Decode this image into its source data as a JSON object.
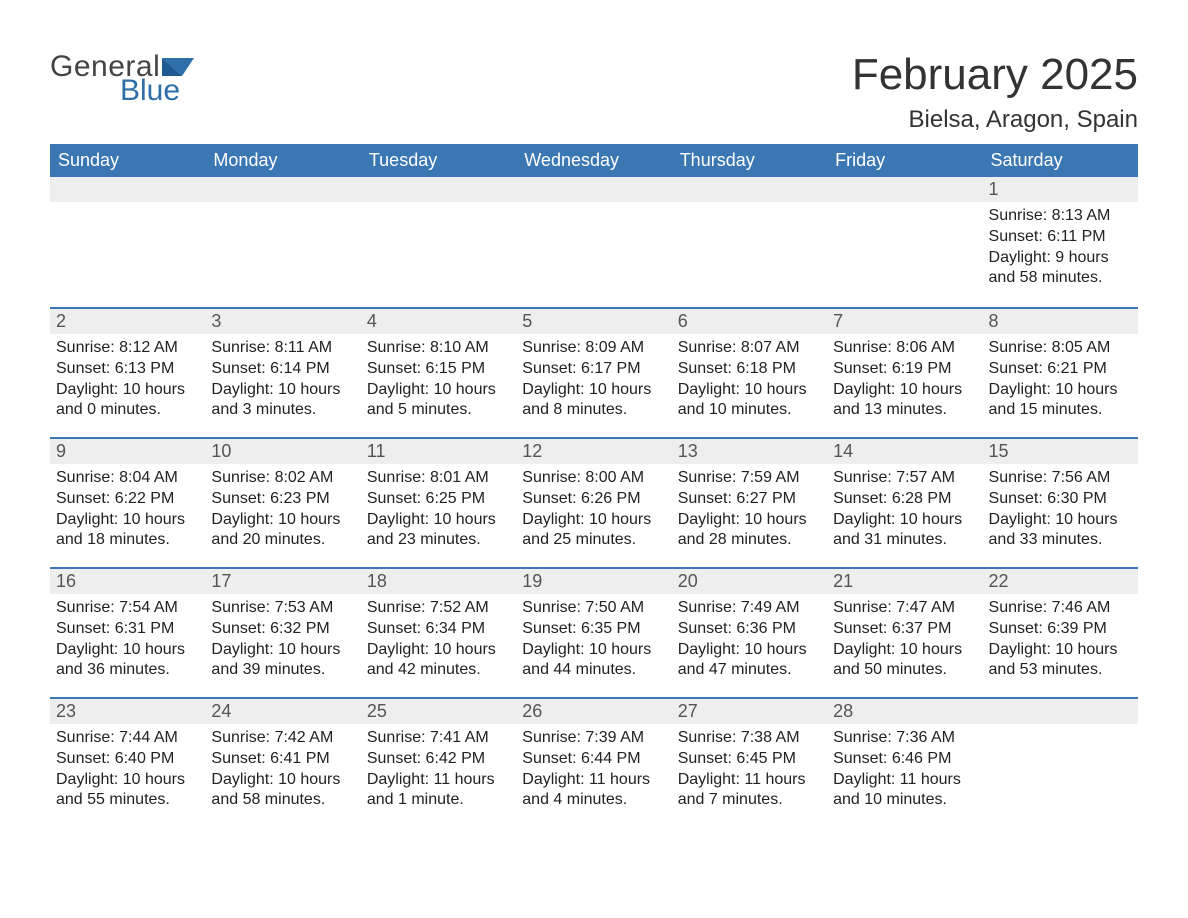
{
  "logo": {
    "text1": "General",
    "text2": "Blue",
    "flag_color": "#2f6fa9",
    "text1_color": "#444444",
    "text2_color": "#2f6fa9"
  },
  "title": "February 2025",
  "location": "Bielsa, Aragon, Spain",
  "header_bg": "#3a77b3",
  "header_text_color": "#ffffff",
  "daynum_bg": "#eeeeee",
  "row_border_color": "#3a77b3",
  "background_color": "#ffffff",
  "text_color": "#222222",
  "dayname_fontsize": 18,
  "title_fontsize": 44,
  "location_fontsize": 24,
  "cell_fontsize": 16,
  "days_of_week": [
    "Sunday",
    "Monday",
    "Tuesday",
    "Wednesday",
    "Thursday",
    "Friday",
    "Saturday"
  ],
  "weeks": [
    [
      null,
      null,
      null,
      null,
      null,
      null,
      {
        "n": "1",
        "sunrise": "Sunrise: 8:13 AM",
        "sunset": "Sunset: 6:11 PM",
        "daylight": "Daylight: 9 hours and 58 minutes."
      }
    ],
    [
      {
        "n": "2",
        "sunrise": "Sunrise: 8:12 AM",
        "sunset": "Sunset: 6:13 PM",
        "daylight": "Daylight: 10 hours and 0 minutes."
      },
      {
        "n": "3",
        "sunrise": "Sunrise: 8:11 AM",
        "sunset": "Sunset: 6:14 PM",
        "daylight": "Daylight: 10 hours and 3 minutes."
      },
      {
        "n": "4",
        "sunrise": "Sunrise: 8:10 AM",
        "sunset": "Sunset: 6:15 PM",
        "daylight": "Daylight: 10 hours and 5 minutes."
      },
      {
        "n": "5",
        "sunrise": "Sunrise: 8:09 AM",
        "sunset": "Sunset: 6:17 PM",
        "daylight": "Daylight: 10 hours and 8 minutes."
      },
      {
        "n": "6",
        "sunrise": "Sunrise: 8:07 AM",
        "sunset": "Sunset: 6:18 PM",
        "daylight": "Daylight: 10 hours and 10 minutes."
      },
      {
        "n": "7",
        "sunrise": "Sunrise: 8:06 AM",
        "sunset": "Sunset: 6:19 PM",
        "daylight": "Daylight: 10 hours and 13 minutes."
      },
      {
        "n": "8",
        "sunrise": "Sunrise: 8:05 AM",
        "sunset": "Sunset: 6:21 PM",
        "daylight": "Daylight: 10 hours and 15 minutes."
      }
    ],
    [
      {
        "n": "9",
        "sunrise": "Sunrise: 8:04 AM",
        "sunset": "Sunset: 6:22 PM",
        "daylight": "Daylight: 10 hours and 18 minutes."
      },
      {
        "n": "10",
        "sunrise": "Sunrise: 8:02 AM",
        "sunset": "Sunset: 6:23 PM",
        "daylight": "Daylight: 10 hours and 20 minutes."
      },
      {
        "n": "11",
        "sunrise": "Sunrise: 8:01 AM",
        "sunset": "Sunset: 6:25 PM",
        "daylight": "Daylight: 10 hours and 23 minutes."
      },
      {
        "n": "12",
        "sunrise": "Sunrise: 8:00 AM",
        "sunset": "Sunset: 6:26 PM",
        "daylight": "Daylight: 10 hours and 25 minutes."
      },
      {
        "n": "13",
        "sunrise": "Sunrise: 7:59 AM",
        "sunset": "Sunset: 6:27 PM",
        "daylight": "Daylight: 10 hours and 28 minutes."
      },
      {
        "n": "14",
        "sunrise": "Sunrise: 7:57 AM",
        "sunset": "Sunset: 6:28 PM",
        "daylight": "Daylight: 10 hours and 31 minutes."
      },
      {
        "n": "15",
        "sunrise": "Sunrise: 7:56 AM",
        "sunset": "Sunset: 6:30 PM",
        "daylight": "Daylight: 10 hours and 33 minutes."
      }
    ],
    [
      {
        "n": "16",
        "sunrise": "Sunrise: 7:54 AM",
        "sunset": "Sunset: 6:31 PM",
        "daylight": "Daylight: 10 hours and 36 minutes."
      },
      {
        "n": "17",
        "sunrise": "Sunrise: 7:53 AM",
        "sunset": "Sunset: 6:32 PM",
        "daylight": "Daylight: 10 hours and 39 minutes."
      },
      {
        "n": "18",
        "sunrise": "Sunrise: 7:52 AM",
        "sunset": "Sunset: 6:34 PM",
        "daylight": "Daylight: 10 hours and 42 minutes."
      },
      {
        "n": "19",
        "sunrise": "Sunrise: 7:50 AM",
        "sunset": "Sunset: 6:35 PM",
        "daylight": "Daylight: 10 hours and 44 minutes."
      },
      {
        "n": "20",
        "sunrise": "Sunrise: 7:49 AM",
        "sunset": "Sunset: 6:36 PM",
        "daylight": "Daylight: 10 hours and 47 minutes."
      },
      {
        "n": "21",
        "sunrise": "Sunrise: 7:47 AM",
        "sunset": "Sunset: 6:37 PM",
        "daylight": "Daylight: 10 hours and 50 minutes."
      },
      {
        "n": "22",
        "sunrise": "Sunrise: 7:46 AM",
        "sunset": "Sunset: 6:39 PM",
        "daylight": "Daylight: 10 hours and 53 minutes."
      }
    ],
    [
      {
        "n": "23",
        "sunrise": "Sunrise: 7:44 AM",
        "sunset": "Sunset: 6:40 PM",
        "daylight": "Daylight: 10 hours and 55 minutes."
      },
      {
        "n": "24",
        "sunrise": "Sunrise: 7:42 AM",
        "sunset": "Sunset: 6:41 PM",
        "daylight": "Daylight: 10 hours and 58 minutes."
      },
      {
        "n": "25",
        "sunrise": "Sunrise: 7:41 AM",
        "sunset": "Sunset: 6:42 PM",
        "daylight": "Daylight: 11 hours and 1 minute."
      },
      {
        "n": "26",
        "sunrise": "Sunrise: 7:39 AM",
        "sunset": "Sunset: 6:44 PM",
        "daylight": "Daylight: 11 hours and 4 minutes."
      },
      {
        "n": "27",
        "sunrise": "Sunrise: 7:38 AM",
        "sunset": "Sunset: 6:45 PM",
        "daylight": "Daylight: 11 hours and 7 minutes."
      },
      {
        "n": "28",
        "sunrise": "Sunrise: 7:36 AM",
        "sunset": "Sunset: 6:46 PM",
        "daylight": "Daylight: 11 hours and 10 minutes."
      },
      null
    ]
  ]
}
